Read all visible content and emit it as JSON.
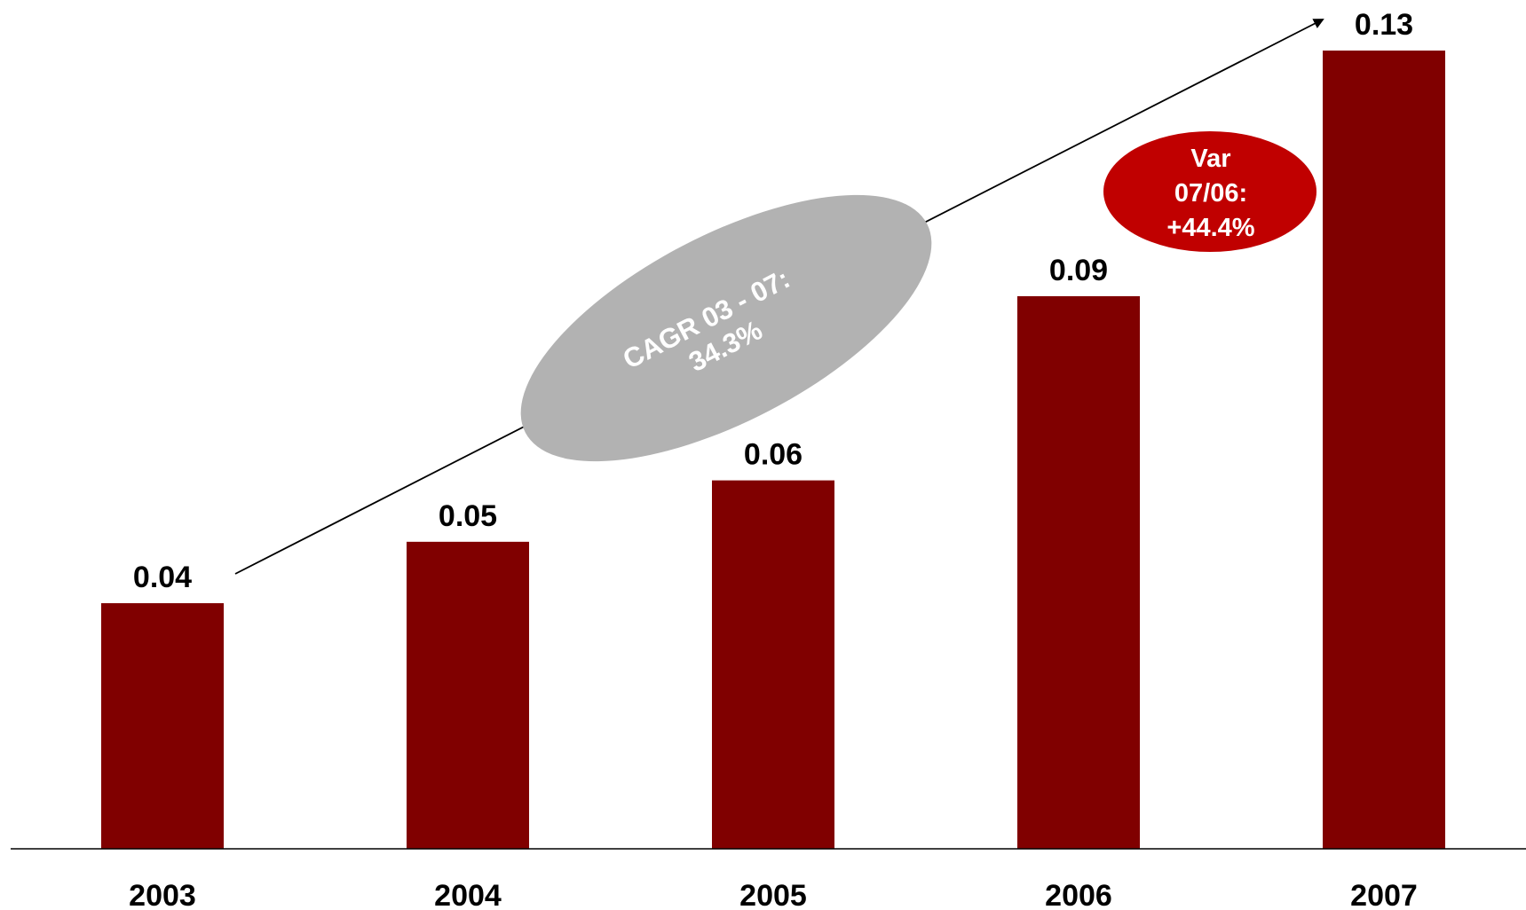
{
  "chart_data": {
    "type": "bar",
    "categories": [
      "2003",
      "2004",
      "2005",
      "2006",
      "2007"
    ],
    "values": [
      0.04,
      0.05,
      0.06,
      0.09,
      0.13
    ],
    "value_labels": [
      "0.04",
      "0.05",
      "0.06",
      "0.09",
      "0.13"
    ],
    "title": "",
    "xlabel": "",
    "ylabel": "",
    "ylim": [
      0,
      0.13
    ],
    "grid": false,
    "bar_color": "#800000",
    "annotations": {
      "cagr": {
        "lines": [
          "CAGR 03 - 07:",
          "34.3%"
        ],
        "fill": "#b2b2b2",
        "text_color": "#ffffff"
      },
      "variation": {
        "lines": [
          "Var",
          "07/06:",
          "+44.4%"
        ],
        "fill": "#c00000",
        "text_color": "#ffffff"
      },
      "trend_arrow": {
        "from": "2003",
        "to": "2007",
        "color": "#000000"
      }
    }
  }
}
